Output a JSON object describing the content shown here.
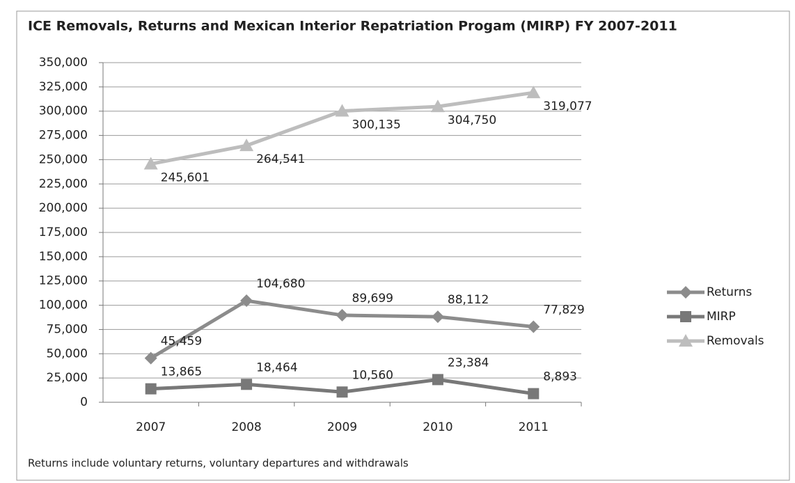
{
  "chart_data": {
    "type": "line",
    "title": "ICE Removals, Returns and Mexican Interior Repatriation Progam (MIRP) FY 2007-2011",
    "note": "Returns include voluntary returns, voluntary departures and withdrawals",
    "categories": [
      "2007",
      "2008",
      "2009",
      "2010",
      "2011"
    ],
    "series": [
      {
        "name": "Returns",
        "color": "#8c8c8c",
        "marker": "diamond",
        "values": [
          45459,
          104680,
          89699,
          88112,
          77829
        ],
        "value_labels": [
          "45,459",
          "104,680",
          "89,699",
          "88,112",
          "77,829"
        ]
      },
      {
        "name": "MIRP",
        "color": "#787878",
        "marker": "square",
        "values": [
          13865,
          18464,
          10560,
          23384,
          8893
        ],
        "value_labels": [
          "13,865",
          "18,464",
          "10,560",
          "23,384",
          "8,893"
        ]
      },
      {
        "name": "Removals",
        "color": "#bdbdbd",
        "marker": "triangle",
        "values": [
          245601,
          264541,
          300135,
          304750,
          319077
        ],
        "value_labels": [
          "245,601",
          "264,541",
          "300,135",
          "304,750",
          "319,077"
        ]
      }
    ],
    "ylim": [
      0,
      350000
    ],
    "yticks": [
      0,
      {
        "value": 25000,
        "label": "25,000"
      },
      {
        "value": 50000,
        "label": "50,000"
      },
      {
        "value": 75000,
        "label": "75,000"
      },
      {
        "value": 100000,
        "label": "100,000"
      },
      {
        "value": 125000,
        "label": "125,000"
      },
      {
        "value": 150000,
        "label": "150,000"
      },
      {
        "value": 175000,
        "label": "175,000"
      },
      {
        "value": 200000,
        "label": "200,000"
      },
      {
        "value": 225000,
        "label": "225,000"
      },
      {
        "value": 250000,
        "label": "250,000"
      },
      {
        "value": 275000,
        "label": "275,000"
      },
      {
        "value": 300000,
        "label": "300,000"
      },
      {
        "value": 325000,
        "label": "325,000"
      },
      {
        "value": 350000,
        "label": "350,000"
      }
    ],
    "grid": true,
    "legend": "right"
  }
}
